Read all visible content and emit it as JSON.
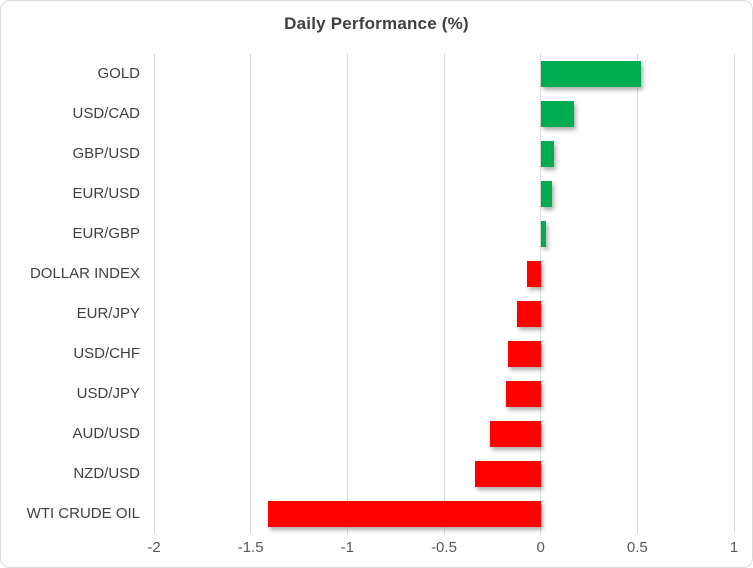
{
  "chart": {
    "colors": {
      "positive": "#00AC50",
      "negative": "#FF0000",
      "gridline": "#D9D9D9",
      "border": "#D9D9D9",
      "background": "#FFFFFF",
      "title_text": "#3F3F3F",
      "category_text": "#404040",
      "tick_text": "#595959"
    }
  },
  "chart_data": {
    "type": "bar",
    "orientation": "horizontal",
    "title": "Daily Performance (%)",
    "categories": [
      "GOLD",
      "USD/CAD",
      "GBP/USD",
      "EUR/USD",
      "EUR/GBP",
      "DOLLAR INDEX",
      "EUR/JPY",
      "USD/CHF",
      "USD/JPY",
      "AUD/USD",
      "NZD/USD",
      "WTI CRUDE OIL"
    ],
    "values": [
      0.52,
      0.17,
      0.07,
      0.06,
      0.03,
      -0.07,
      -0.12,
      -0.17,
      -0.18,
      -0.26,
      -0.34,
      -1.41
    ],
    "xlabel": "",
    "ylabel": "",
    "xlim": [
      -2,
      1
    ],
    "xticks": [
      -2,
      -1.5,
      -1,
      -0.5,
      0,
      0.5,
      1
    ],
    "xtick_labels": [
      "-2",
      "-1.5",
      "-1",
      "-0.5",
      "0",
      "0.5",
      "1"
    ],
    "grid": true,
    "legend": false
  }
}
